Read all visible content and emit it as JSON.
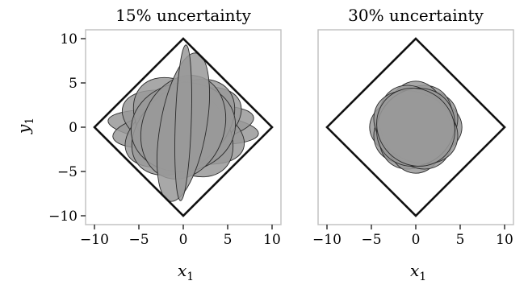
{
  "chart_data": [
    {
      "type": "scatter",
      "title": "15% uncertainty",
      "xlabel": "x",
      "xlabel_sub": "1",
      "ylabel": "y",
      "ylabel_sub": "1",
      "xlim": [
        -11,
        11
      ],
      "ylim": [
        -11,
        11
      ],
      "xticks": [
        -10,
        -5,
        0,
        5,
        10
      ],
      "yticks": [
        -10,
        -5,
        0,
        5,
        10
      ],
      "xtick_labels": [
        "−10",
        "−5",
        "0",
        "5",
        "10"
      ],
      "ytick_labels": [
        "−10",
        "−5",
        "0",
        "5",
        "10"
      ],
      "diamond": [
        [
          0,
          10
        ],
        [
          10,
          0
        ],
        [
          0,
          -10
        ],
        [
          -10,
          0
        ]
      ],
      "ellipses": [
        {
          "cx": 0,
          "cy": 0,
          "rx": 8.5,
          "ry": 1.9,
          "angle": -5
        },
        {
          "cx": 0,
          "cy": 0,
          "rx": 8.0,
          "ry": 2.2,
          "angle": 8
        },
        {
          "cx": 0,
          "cy": 0,
          "rx": 7.2,
          "ry": 3.6,
          "angle": -20
        },
        {
          "cx": 0,
          "cy": 0,
          "rx": 7.0,
          "ry": 3.8,
          "angle": 25
        },
        {
          "cx": 0,
          "cy": 0,
          "rx": 6.6,
          "ry": 4.4,
          "angle": -45
        },
        {
          "cx": 0,
          "cy": 0,
          "rx": 6.6,
          "ry": 4.4,
          "angle": 40
        },
        {
          "cx": 0,
          "cy": 0,
          "rx": 5.9,
          "ry": 5.0,
          "angle": 10
        },
        {
          "cx": 0,
          "cy": 0,
          "rx": 6.0,
          "ry": 4.6,
          "angle": 70
        },
        {
          "cx": 0,
          "cy": 0,
          "rx": 8.5,
          "ry": 2.6,
          "angle": 80
        },
        {
          "cx": 0,
          "cy": 0.5,
          "rx": 8.8,
          "ry": 0.9,
          "angle": 88
        }
      ]
    },
    {
      "type": "scatter",
      "title": "30% uncertainty",
      "xlabel": "x",
      "xlabel_sub": "1",
      "xlim": [
        -11,
        11
      ],
      "ylim": [
        -11,
        11
      ],
      "xticks": [
        -10,
        -5,
        0,
        5,
        10
      ],
      "xtick_labels": [
        "−10",
        "−5",
        "0",
        "5",
        "10"
      ],
      "diamond": [
        [
          0,
          10
        ],
        [
          10,
          0
        ],
        [
          0,
          -10
        ],
        [
          -10,
          0
        ]
      ],
      "ellipses": [
        {
          "cx": 0,
          "cy": 0,
          "rx": 5.2,
          "ry": 3.6,
          "angle": 0
        },
        {
          "cx": 0,
          "cy": 0,
          "rx": 5.0,
          "ry": 3.8,
          "angle": 30
        },
        {
          "cx": 0,
          "cy": 0,
          "rx": 5.0,
          "ry": 3.8,
          "angle": 60
        },
        {
          "cx": 0,
          "cy": 0,
          "rx": 5.2,
          "ry": 3.6,
          "angle": 90
        },
        {
          "cx": 0,
          "cy": 0,
          "rx": 5.0,
          "ry": 3.8,
          "angle": 120
        },
        {
          "cx": 0,
          "cy": 0,
          "rx": 5.0,
          "ry": 3.8,
          "angle": 150
        },
        {
          "cx": 0,
          "cy": 0,
          "rx": 4.6,
          "ry": 4.2,
          "angle": 45
        },
        {
          "cx": 0,
          "cy": 0,
          "rx": 4.6,
          "ry": 4.2,
          "angle": 135
        }
      ]
    }
  ],
  "colors": {
    "ellipse_fill": "#999999",
    "ellipse_stroke": "#2a2a2a",
    "diamond_stroke": "#111111",
    "frame": "#bfbfbf"
  }
}
